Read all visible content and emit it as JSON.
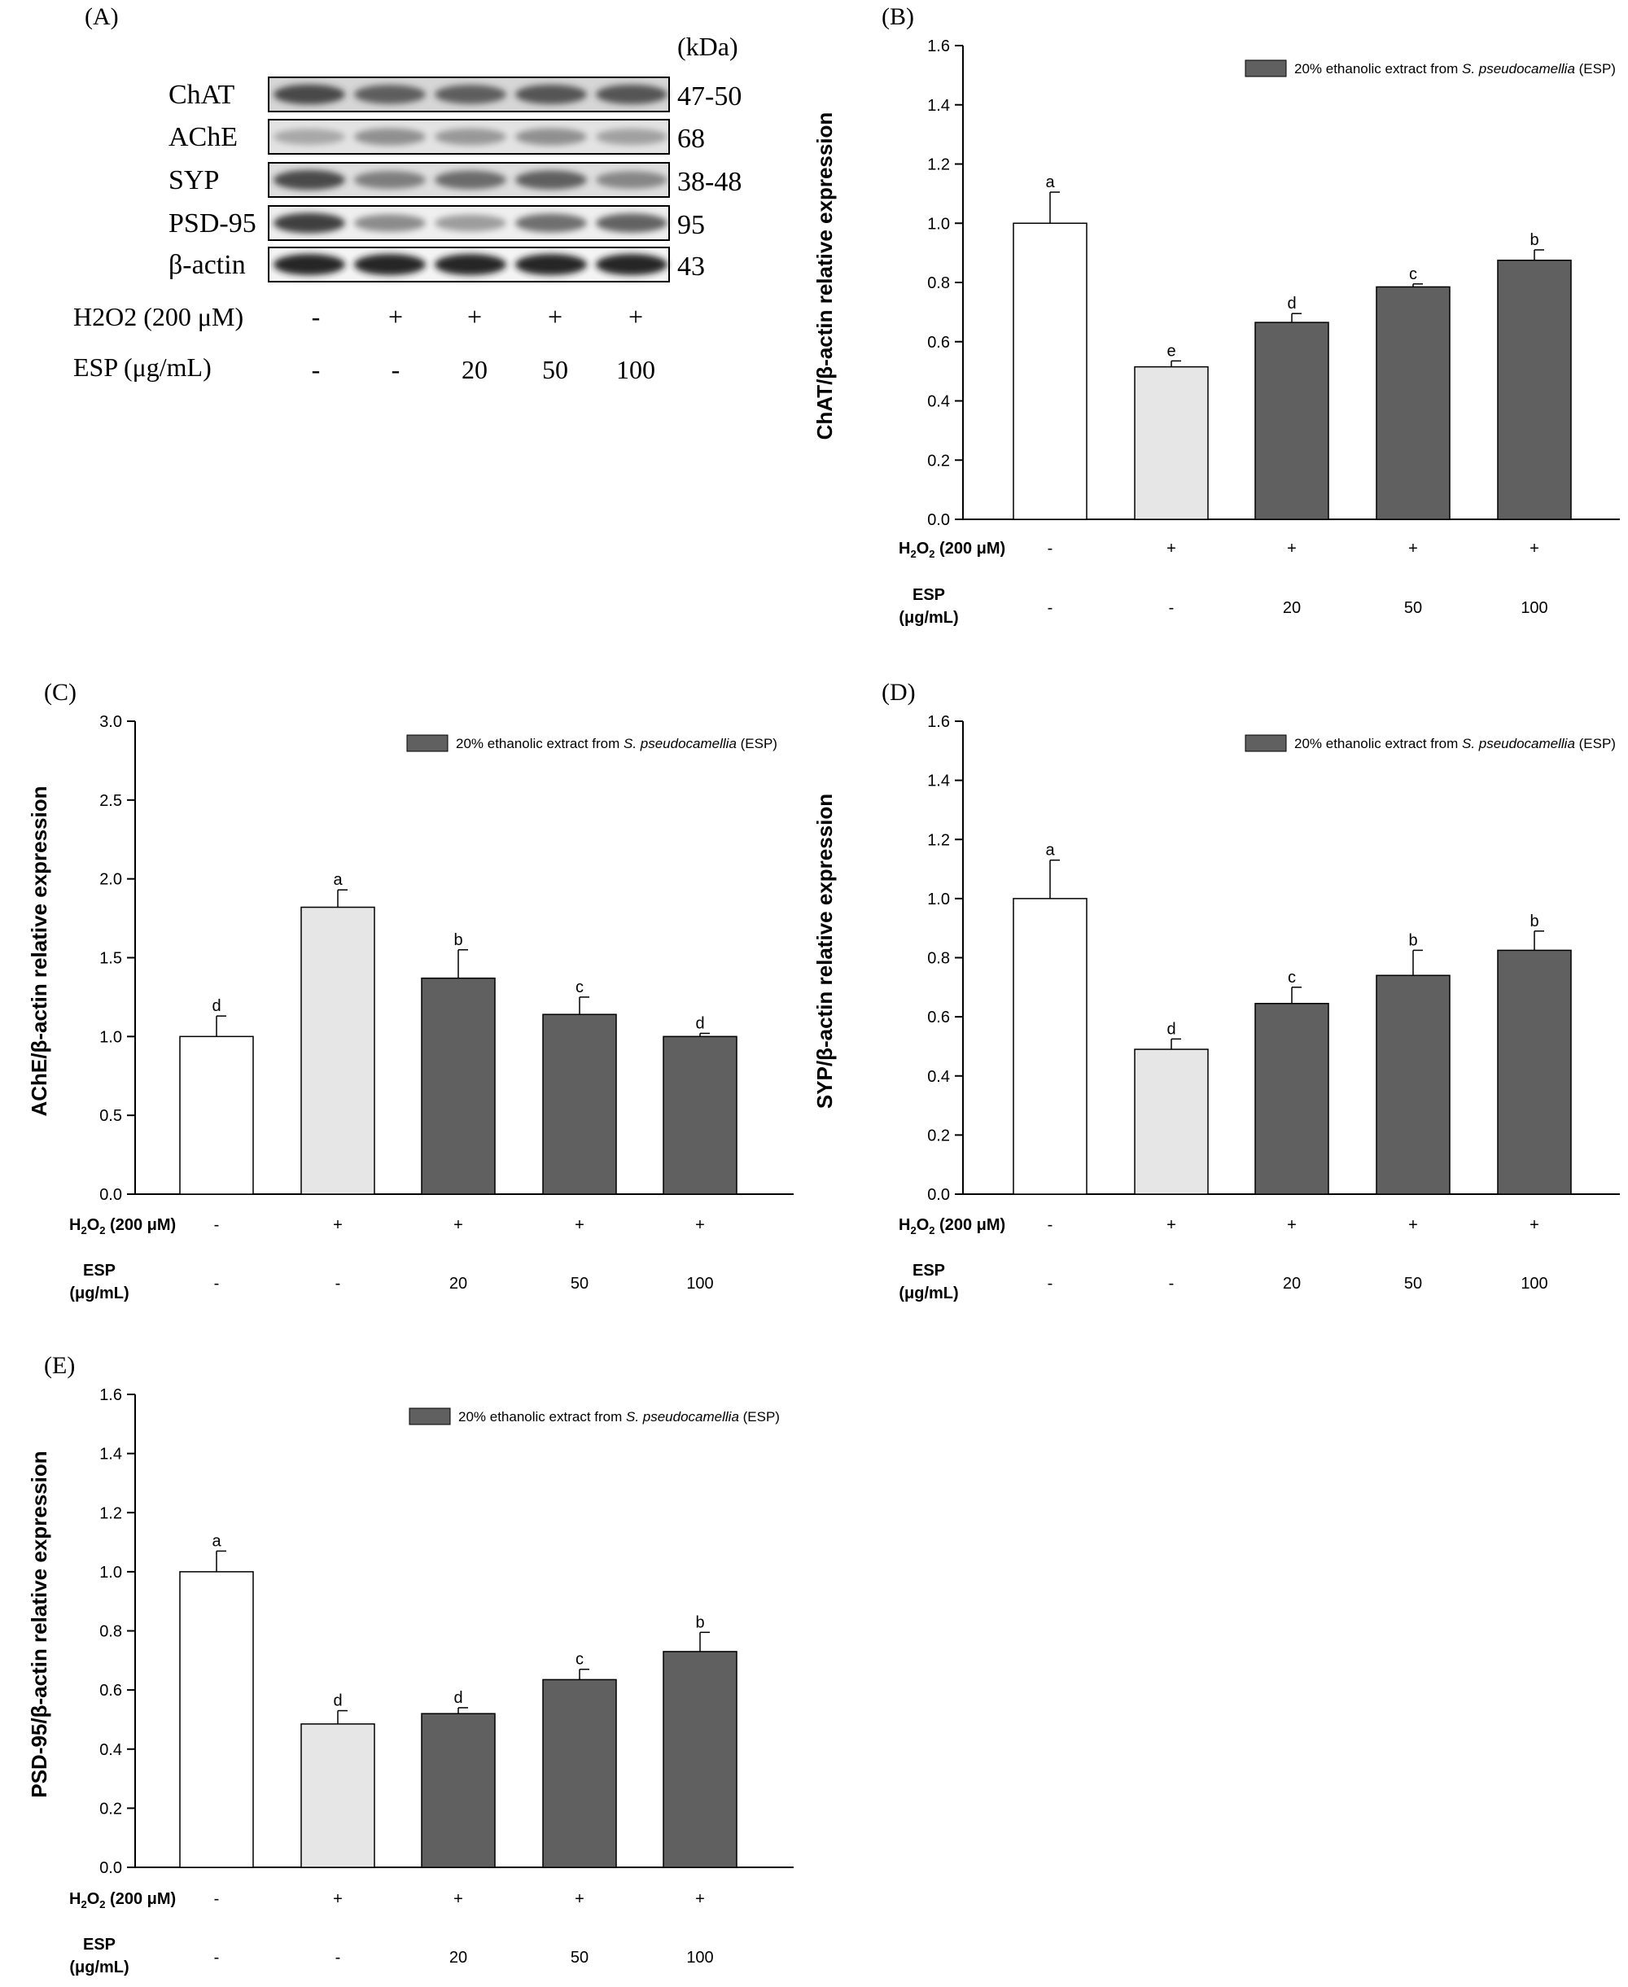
{
  "panel_a": {
    "label": "(A)",
    "kda_label": "(kDa)",
    "proteins": [
      {
        "name": "ChAT",
        "kda": "47-50"
      },
      {
        "name": "AChE",
        "kda": "68"
      },
      {
        "name": "SYP",
        "kda": "38-48"
      },
      {
        "name": "PSD-95",
        "kda": "95"
      },
      {
        "name": "β-actin",
        "kda": "43"
      }
    ],
    "h2o2_label": "H2O2 (200 μM)",
    "esp_label": "ESP (μg/mL)",
    "h2o2_values": [
      "-",
      "+",
      "+",
      "+",
      "+"
    ],
    "esp_values": [
      "-",
      "-",
      "20",
      "50",
      "100"
    ]
  },
  "chart_data": [
    {
      "panel": "(B)",
      "type": "bar",
      "ylabel": "ChAT/β-actin relative expression",
      "ylim": [
        0,
        1.6
      ],
      "yticks": [
        "0.0",
        "0.2",
        "0.4",
        "0.6",
        "0.8",
        "1.0",
        "1.2",
        "1.4",
        "1.6"
      ],
      "values": [
        1.0,
        0.515,
        0.665,
        0.785,
        0.875
      ],
      "errors": [
        0.105,
        0.02,
        0.03,
        0.01,
        0.035
      ],
      "letters": [
        "a",
        "e",
        "d",
        "c",
        "b"
      ],
      "legend": {
        "prefix": "20% ethanolic extract from ",
        "species": "S. pseudocamellia",
        "suffix": " (ESP)"
      },
      "h2o2_label": "H2O2 (200 μM)",
      "esp_label_1": "ESP",
      "esp_label_2": "(μg/mL)",
      "h2o2_values": [
        "-",
        "+",
        "+",
        "+",
        "+"
      ],
      "esp_values": [
        "-",
        "-",
        "20",
        "50",
        "100"
      ],
      "colors": [
        "#ffffff",
        "#e6e6e6",
        "#606060",
        "#606060",
        "#606060"
      ]
    },
    {
      "panel": "(C)",
      "type": "bar",
      "ylabel": "AChE/β-actin relative expression",
      "ylim": [
        0,
        3.0
      ],
      "yticks": [
        "0.0",
        "0.5",
        "1.0",
        "1.5",
        "2.0",
        "2.5",
        "3.0"
      ],
      "values": [
        1.0,
        1.82,
        1.37,
        1.14,
        1.0
      ],
      "errors": [
        0.13,
        0.11,
        0.18,
        0.11,
        0.02
      ],
      "letters": [
        "d",
        "a",
        "b",
        "c",
        "d"
      ],
      "legend": {
        "prefix": "20% ethanolic extract from ",
        "species": "S. pseudocamellia",
        "suffix": " (ESP)"
      },
      "h2o2_label": "H2O2 (200 μM)",
      "esp_label_1": "ESP",
      "esp_label_2": "(μg/mL)",
      "h2o2_values": [
        "-",
        "+",
        "+",
        "+",
        "+"
      ],
      "esp_values": [
        "-",
        "-",
        "20",
        "50",
        "100"
      ],
      "colors": [
        "#ffffff",
        "#e6e6e6",
        "#606060",
        "#606060",
        "#606060"
      ]
    },
    {
      "panel": "(D)",
      "type": "bar",
      "ylabel": "SYP/β-actin relative expression",
      "ylim": [
        0,
        1.6
      ],
      "yticks": [
        "0.0",
        "0.2",
        "0.4",
        "0.6",
        "0.8",
        "1.0",
        "1.2",
        "1.4",
        "1.6"
      ],
      "values": [
        1.0,
        0.49,
        0.645,
        0.74,
        0.825
      ],
      "errors": [
        0.13,
        0.035,
        0.055,
        0.085,
        0.065
      ],
      "letters": [
        "a",
        "d",
        "c",
        "b",
        "b"
      ],
      "legend": {
        "prefix": "20% ethanolic extract from ",
        "species": "S. pseudocamellia",
        "suffix": " (ESP)"
      },
      "h2o2_label": "H2O2 (200 μM)",
      "esp_label_1": "ESP",
      "esp_label_2": "(μg/mL)",
      "h2o2_values": [
        "-",
        "+",
        "+",
        "+",
        "+"
      ],
      "esp_values": [
        "-",
        "-",
        "20",
        "50",
        "100"
      ],
      "colors": [
        "#ffffff",
        "#e6e6e6",
        "#606060",
        "#606060",
        "#606060"
      ]
    },
    {
      "panel": "(E)",
      "type": "bar",
      "ylabel": "PSD-95/β-actin relative expression",
      "ylim": [
        0,
        1.6
      ],
      "yticks": [
        "0.0",
        "0.2",
        "0.4",
        "0.6",
        "0.8",
        "1.0",
        "1.2",
        "1.4",
        "1.6"
      ],
      "values": [
        1.0,
        0.485,
        0.52,
        0.635,
        0.73
      ],
      "errors": [
        0.07,
        0.045,
        0.02,
        0.035,
        0.065
      ],
      "letters": [
        "a",
        "d",
        "d",
        "c",
        "b"
      ],
      "legend": {
        "prefix": "20% ethanolic extract from ",
        "species": "S. pseudocamellia",
        "suffix": " (ESP)"
      },
      "h2o2_label": "H2O2 (200 μM)",
      "esp_label_1": "ESP",
      "esp_label_2": "(μg/mL)",
      "h2o2_values": [
        "-",
        "+",
        "+",
        "+",
        "+"
      ],
      "esp_values": [
        "-",
        "-",
        "20",
        "50",
        "100"
      ],
      "colors": [
        "#ffffff",
        "#e6e6e6",
        "#606060",
        "#606060",
        "#606060"
      ]
    }
  ]
}
